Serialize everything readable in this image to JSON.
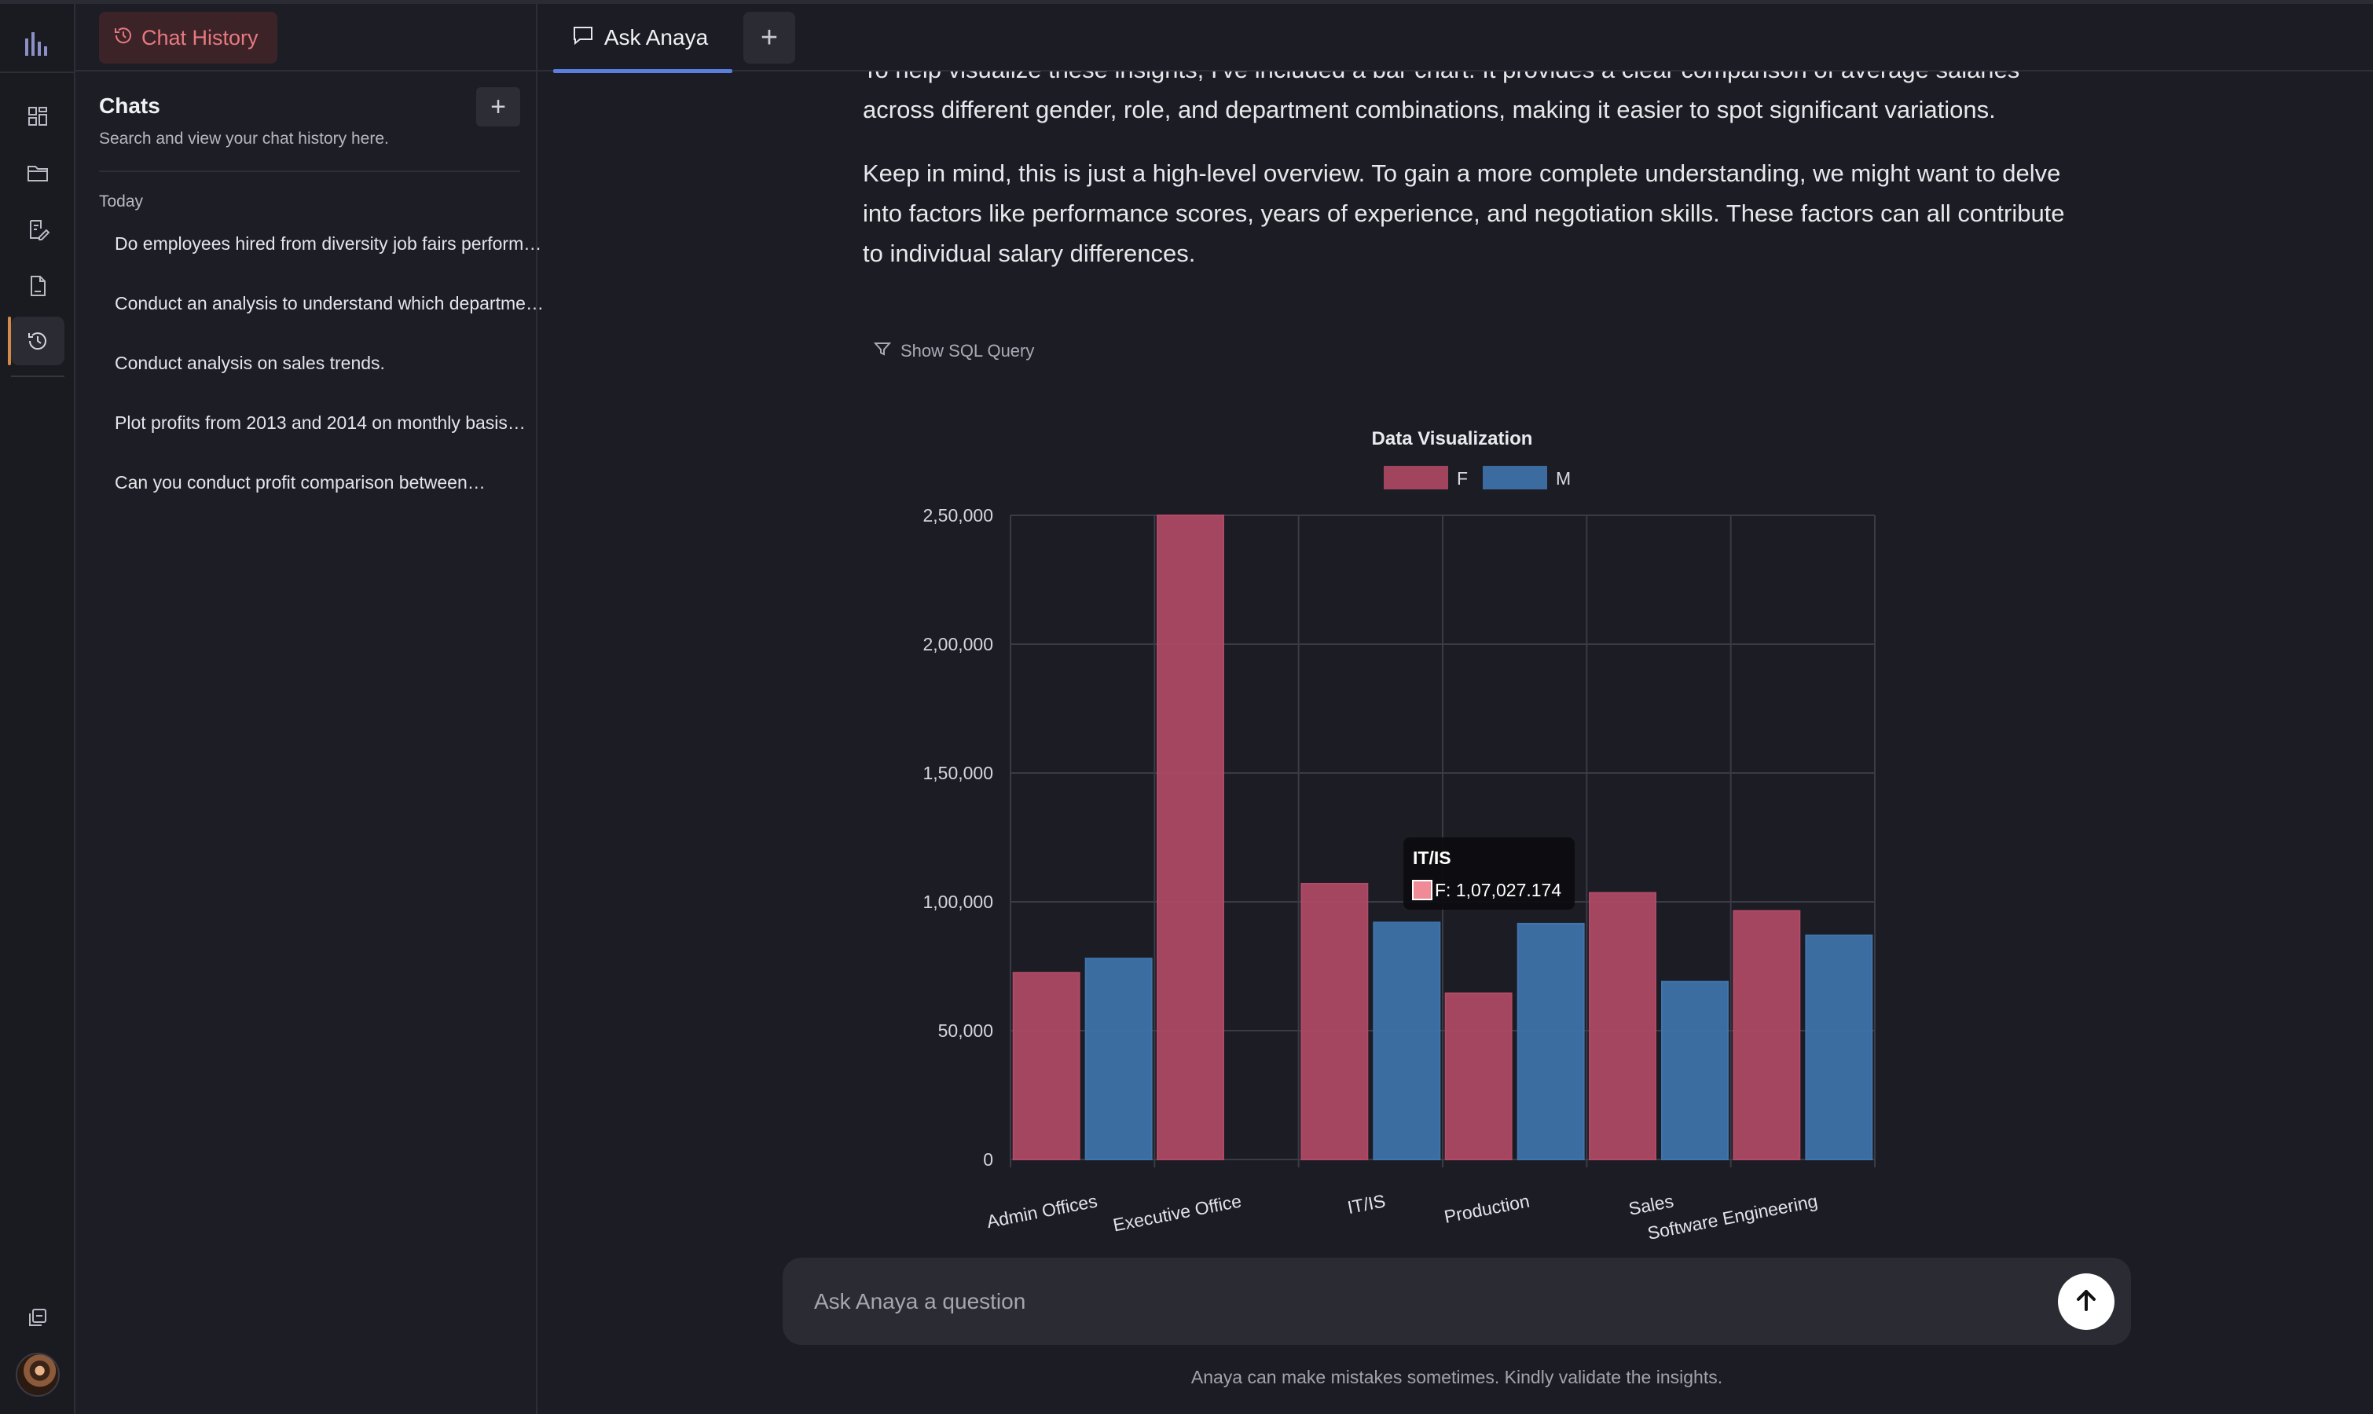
{
  "rail": {
    "icons": [
      "analytics-logo-icon",
      "dashboard-icon",
      "folder-icon",
      "edit-document-icon",
      "document-icon",
      "history-icon",
      "copy-icon"
    ],
    "colors": {
      "active_accent": "#d28a48"
    }
  },
  "sidebar": {
    "chip_label": "Chat History",
    "title": "Chats",
    "subtitle": "Search and view your chat history here.",
    "section_label": "Today",
    "items": [
      {
        "label": "Do employees hired from diversity job fairs perform better…"
      },
      {
        "label": "Conduct an analysis to understand which departments…"
      },
      {
        "label": "Conduct analysis on sales trends."
      },
      {
        "label": "Plot profits from 2013 and 2014 on monthly basis…"
      },
      {
        "label": "Can you conduct profit comparison between…"
      }
    ]
  },
  "topbar": {
    "tab_label": "Ask Anaya"
  },
  "main": {
    "paragraph1": "To help visualize these insights, I've included a bar chart. It provides a clear comparison of average salaries across different gender, role, and department combinations, making it easier to spot significant variations.",
    "paragraph2": "Keep in mind, this is just a high-level overview. To gain a more complete understanding, we might want to delve into factors like performance scores, years of experience, and negotiation skills. These factors can all contribute to individual salary differences.",
    "sql_toggle_label": "Show SQL Query"
  },
  "chart_data": {
    "type": "bar",
    "title": "Data Visualization",
    "xlabel": "",
    "ylabel": "",
    "categories": [
      "Admin Offices",
      "Executive Office",
      "IT/IS",
      "Production",
      "Sales",
      "Software Engineering"
    ],
    "series": [
      {
        "name": "F",
        "color": "#b04a66",
        "values": [
          72500,
          250000,
          107027.174,
          64500,
          103500,
          96500
        ]
      },
      {
        "name": "M",
        "color": "#3f74ad",
        "values": [
          78000,
          null,
          92000,
          91500,
          69000,
          87000
        ]
      }
    ],
    "ylim": [
      0,
      250000
    ],
    "yticks": [
      0,
      50000,
      100000,
      150000,
      200000,
      250000
    ],
    "ytick_labels": [
      "0",
      "50,000",
      "1,00,000",
      "1,50,000",
      "2,00,000",
      "2,50,000"
    ],
    "grid": true,
    "legend": "top-center",
    "tooltip": {
      "title": "IT/IS",
      "text": "F: 1,07,027.174"
    }
  },
  "composer": {
    "placeholder": "Ask Anaya a question",
    "disclaimer": "Anaya can make mistakes sometimes. Kindly validate the insights."
  }
}
